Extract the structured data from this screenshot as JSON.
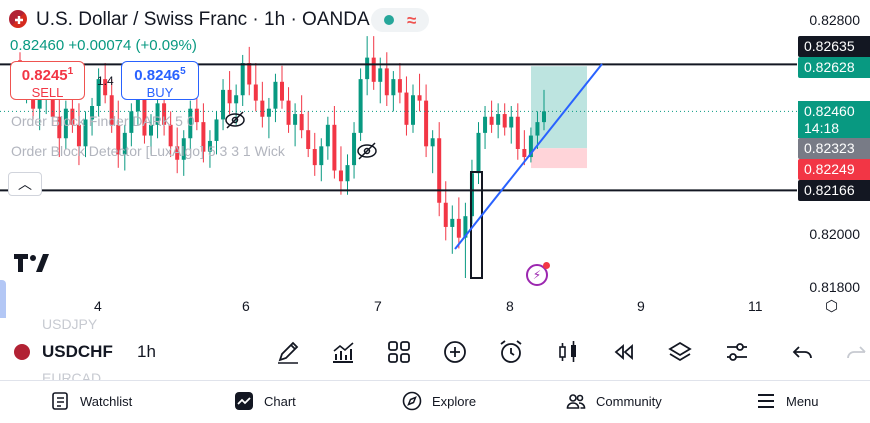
{
  "header": {
    "title": "U.S. Dollar / Swiss Franc · 1h · OANDA",
    "quote": "0.82460 +0.00074 (+0.09%)",
    "status_dot_color": "#26a69a",
    "wave_icon": "wave-icon"
  },
  "trade": {
    "sell_price_main": "0.8245",
    "sell_price_sup": "1",
    "sell_label": "SELL",
    "buy_price_main": "0.8246",
    "buy_price_sup": "5",
    "buy_label": "BUY",
    "spread": "1.4"
  },
  "indicators": [
    {
      "label": "Order Block Finder DARK 5 0"
    },
    {
      "label": "Order Block Detector [LuxAlgo] 5 3 3 1 Wick"
    }
  ],
  "price_scale": {
    "ticks": [
      "0.82800",
      "0.82000",
      "0.81800"
    ],
    "level_top": "0.82635",
    "target": "0.82628",
    "live_price": "0.82460",
    "countdown": "14:18",
    "entry": "0.82323",
    "stop": "0.82249",
    "level_bottom": "0.82166"
  },
  "time_axis": [
    "4",
    "6",
    "7",
    "8",
    "9",
    "11"
  ],
  "toolbar": {
    "symbol": "USDCHF",
    "symbol_prev": "USDJPY",
    "symbol_next": "EURCAD",
    "timeframe": "1h",
    "icons": [
      "pencil-icon",
      "indicators-icon",
      "grid-icon",
      "plus-circle-icon",
      "alarm-icon",
      "candles-icon",
      "rewind-icon",
      "layers-icon",
      "sliders-icon",
      "undo-icon",
      "redo-icon"
    ]
  },
  "nav": [
    {
      "label": "Watchlist",
      "icon": "watchlist-icon"
    },
    {
      "label": "Chart",
      "icon": "chart-icon"
    },
    {
      "label": "Explore",
      "icon": "compass-icon"
    },
    {
      "label": "Community",
      "icon": "community-icon"
    },
    {
      "label": "Menu",
      "icon": "menu-icon"
    }
  ],
  "colors": {
    "up": "#089981",
    "down": "#f23645",
    "trendline": "#2962ff",
    "target_zone": "#b2dfdb",
    "stop_zone": "#ffcdd2"
  },
  "chart_data": {
    "type": "candlestick",
    "symbol": "USDCHF",
    "timeframe": "1h",
    "x_ticks": [
      "4",
      "6",
      "7",
      "8",
      "9",
      "11"
    ],
    "y_ticks": [
      0.828,
      0.82,
      0.818
    ],
    "horizontal_levels": [
      0.82635,
      0.82166
    ],
    "long_position": {
      "entry": 0.82323,
      "target": 0.82628,
      "stop": 0.82249
    },
    "last_price": 0.8246,
    "candles": [
      [
        0.8265,
        0.8268,
        0.8252,
        0.8257
      ],
      [
        0.8257,
        0.8262,
        0.8249,
        0.826
      ],
      [
        0.826,
        0.8264,
        0.8243,
        0.8247
      ],
      [
        0.8247,
        0.8256,
        0.8239,
        0.8252
      ],
      [
        0.8252,
        0.8259,
        0.8245,
        0.8255
      ],
      [
        0.8255,
        0.826,
        0.8241,
        0.8244
      ],
      [
        0.8244,
        0.8251,
        0.8229,
        0.8236
      ],
      [
        0.8236,
        0.825,
        0.8232,
        0.8247
      ],
      [
        0.8247,
        0.8255,
        0.8238,
        0.8241
      ],
      [
        0.8241,
        0.8249,
        0.8226,
        0.8233
      ],
      [
        0.8233,
        0.8246,
        0.8229,
        0.8243
      ],
      [
        0.8243,
        0.8251,
        0.8237,
        0.8248
      ],
      [
        0.8248,
        0.8262,
        0.8244,
        0.8258
      ],
      [
        0.8258,
        0.8264,
        0.8249,
        0.8252
      ],
      [
        0.8252,
        0.8258,
        0.8238,
        0.8241
      ],
      [
        0.8241,
        0.825,
        0.8225,
        0.823
      ],
      [
        0.823,
        0.8241,
        0.8224,
        0.8238
      ],
      [
        0.8238,
        0.8249,
        0.8233,
        0.8246
      ],
      [
        0.8246,
        0.8256,
        0.8241,
        0.8252
      ],
      [
        0.8252,
        0.8257,
        0.8234,
        0.8237
      ],
      [
        0.8237,
        0.8245,
        0.823,
        0.8241
      ],
      [
        0.8241,
        0.8253,
        0.8236,
        0.8249
      ],
      [
        0.8249,
        0.8255,
        0.8237,
        0.8241
      ],
      [
        0.8241,
        0.8246,
        0.8229,
        0.8233
      ],
      [
        0.8233,
        0.824,
        0.8223,
        0.8228
      ],
      [
        0.8228,
        0.8239,
        0.8222,
        0.8236
      ],
      [
        0.8236,
        0.825,
        0.8232,
        0.8247
      ],
      [
        0.8247,
        0.8255,
        0.8239,
        0.8242
      ],
      [
        0.8242,
        0.8249,
        0.8227,
        0.8231
      ],
      [
        0.8231,
        0.8239,
        0.8225,
        0.8235
      ],
      [
        0.8235,
        0.8246,
        0.823,
        0.8243
      ],
      [
        0.8243,
        0.8258,
        0.8239,
        0.8254
      ],
      [
        0.8254,
        0.8261,
        0.8245,
        0.8249
      ],
      [
        0.8249,
        0.8256,
        0.8241,
        0.8252
      ],
      [
        0.8252,
        0.8267,
        0.8248,
        0.8264
      ],
      [
        0.8264,
        0.827,
        0.8252,
        0.8256
      ],
      [
        0.8256,
        0.8264,
        0.8246,
        0.825
      ],
      [
        0.825,
        0.8257,
        0.824,
        0.8244
      ],
      [
        0.8244,
        0.8251,
        0.8236,
        0.8247
      ],
      [
        0.8247,
        0.826,
        0.8242,
        0.8257
      ],
      [
        0.8257,
        0.8263,
        0.8247,
        0.825
      ],
      [
        0.825,
        0.8255,
        0.8238,
        0.8241
      ],
      [
        0.8241,
        0.8249,
        0.8233,
        0.8245
      ],
      [
        0.8245,
        0.8252,
        0.8236,
        0.8239
      ],
      [
        0.8239,
        0.8246,
        0.8229,
        0.8232
      ],
      [
        0.8232,
        0.8238,
        0.8222,
        0.8226
      ],
      [
        0.8226,
        0.8236,
        0.822,
        0.8233
      ],
      [
        0.8233,
        0.8244,
        0.8228,
        0.8241
      ],
      [
        0.8241,
        0.8248,
        0.8221,
        0.8224
      ],
      [
        0.8224,
        0.8233,
        0.8215,
        0.822
      ],
      [
        0.822,
        0.823,
        0.8215,
        0.8226
      ],
      [
        0.8226,
        0.8242,
        0.8221,
        0.8238
      ],
      [
        0.8238,
        0.8262,
        0.8235,
        0.8258
      ],
      [
        0.8258,
        0.8274,
        0.8252,
        0.8266
      ],
      [
        0.8266,
        0.8274,
        0.8254,
        0.8257
      ],
      [
        0.8257,
        0.8266,
        0.8249,
        0.8262
      ],
      [
        0.8262,
        0.8268,
        0.8248,
        0.8252
      ],
      [
        0.8252,
        0.8261,
        0.8246,
        0.8258
      ],
      [
        0.8258,
        0.8264,
        0.8249,
        0.8253
      ],
      [
        0.8253,
        0.8259,
        0.8237,
        0.8241
      ],
      [
        0.8241,
        0.8256,
        0.8238,
        0.8252
      ],
      [
        0.8252,
        0.826,
        0.8246,
        0.825
      ],
      [
        0.825,
        0.8256,
        0.8229,
        0.8233
      ],
      [
        0.8233,
        0.8239,
        0.8223,
        0.8236
      ],
      [
        0.8236,
        0.8242,
        0.8207,
        0.8212
      ],
      [
        0.8212,
        0.822,
        0.8198,
        0.8203
      ],
      [
        0.8203,
        0.8211,
        0.8193,
        0.8206
      ],
      [
        0.8206,
        0.8214,
        0.8195,
        0.8199
      ],
      [
        0.8199,
        0.8212,
        0.8184,
        0.8207
      ],
      [
        0.8207,
        0.8228,
        0.8204,
        0.8223
      ],
      [
        0.8223,
        0.8242,
        0.8219,
        0.8238
      ],
      [
        0.8238,
        0.8248,
        0.8232,
        0.8244
      ],
      [
        0.8244,
        0.825,
        0.8238,
        0.8241
      ],
      [
        0.8241,
        0.8249,
        0.8236,
        0.8245
      ],
      [
        0.8245,
        0.8249,
        0.8237,
        0.824
      ],
      [
        0.824,
        0.8248,
        0.8234,
        0.8244
      ],
      [
        0.8244,
        0.8249,
        0.8228,
        0.8232
      ],
      [
        0.8232,
        0.8239,
        0.8226,
        0.8229
      ],
      [
        0.8229,
        0.824,
        0.8227,
        0.8237
      ],
      [
        0.8237,
        0.8246,
        0.8232,
        0.8242
      ],
      [
        0.8242,
        0.8254,
        0.8239,
        0.8246
      ]
    ]
  }
}
